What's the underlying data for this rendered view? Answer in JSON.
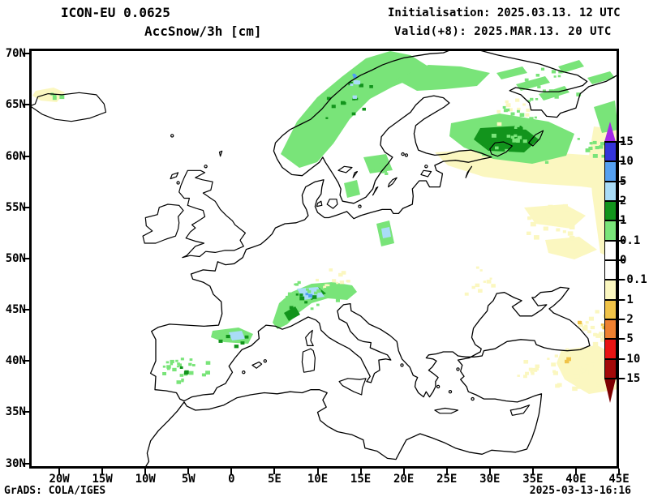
{
  "header": {
    "model_line": "ICON-EU 0.0625",
    "param_line": "AccSnow/3h [cm]",
    "init_line": "Initialisation: 2025.03.13. 12 UTC",
    "valid_line": "Valid(+8): 2025.MAR.13. 20 UTC"
  },
  "footer": {
    "credit": "GrADS: COLA/IGES",
    "generated": "2025-03-13-16:16"
  },
  "map_axes": {
    "lat_labels": [
      "70N",
      "65N",
      "60N",
      "55N",
      "50N",
      "45N",
      "40N",
      "35N",
      "30N"
    ],
    "lon_labels": [
      "20W",
      "15W",
      "10W",
      "5W",
      "0",
      "5E",
      "10E",
      "15E",
      "20E",
      "25E",
      "30E",
      "35E",
      "40E",
      "45E"
    ]
  },
  "colorbar": {
    "tick_labels": [
      "15",
      "10",
      "5",
      "2",
      "1",
      "0.1",
      "0",
      "-0.1",
      "-1",
      "-2",
      "-5",
      "-10",
      "-15"
    ],
    "segment_colors_top_to_bottom": [
      "#3434D9",
      "#55A0F0",
      "#A9DCF7",
      "#12941C",
      "#79E479",
      "#FFFFFF",
      "#FFFFFF",
      "#FBF7C0",
      "#F0C348",
      "#EE8030",
      "#E81414",
      "#A30909"
    ],
    "arrow_top_color": "#A428E8",
    "arrow_bottom_color": "#7E0000"
  },
  "chart_data": {
    "type": "map",
    "title": "ICON-EU 0.0625 AccSnow/3h [cm]",
    "initialisation": "2025.03.13. 12 UTC",
    "valid": "2025.MAR.13. 20 UTC",
    "forecast_hour": 8,
    "units": "cm",
    "domain": {
      "lon_range": [
        -23.5,
        45.0
      ],
      "lat_range": [
        29.5,
        70.5
      ]
    },
    "scale_levels": [
      -15,
      -10,
      -5,
      -2,
      -1,
      -0.1,
      0,
      0.1,
      1,
      2,
      5,
      10,
      15
    ],
    "legend_position": "right",
    "grid": "lat/lon labels every 5 degrees, no gridlines",
    "regions": [
      {
        "area": "Norwegian coastal mountains",
        "value_cm": "0.1 to 2, local spots 2 to 5"
      },
      {
        "area": "Finnmark / northern Norway",
        "value_cm": "0.1 to 1"
      },
      {
        "area": "Kola peninsula streaks",
        "value_cm": "0.1 to 1"
      },
      {
        "area": "NW Russia east of Ladoga/Onega",
        "value_cm": "0.1 to 1 with 1 to 2 core"
      },
      {
        "area": "Central Sweden spot",
        "value_cm": "0.1 to 1"
      },
      {
        "area": "East Baltic coast spot",
        "value_cm": "0.1 to 2, small 2 to 5 core"
      },
      {
        "area": "Alps",
        "value_cm": "0.1 to 2, local 2 to 5 core"
      },
      {
        "area": "Pyrenees / N Spain",
        "value_cm": "0.1 to 2, local 2 to 5 core"
      },
      {
        "area": "Central Spain scattered",
        "value_cm": "0.1 to 1"
      },
      {
        "area": "Iceland",
        "value_cm": "-0.1 to -1 (decrease)"
      },
      {
        "area": "NW Russia south of White Sea, W Russia plains",
        "value_cm": "-0.1 to -1 (decrease)"
      },
      {
        "area": "NE Black Sea / Caucasus / E Turkey",
        "value_cm": "-0.1 to -1, dots -1 to -2"
      }
    ]
  }
}
